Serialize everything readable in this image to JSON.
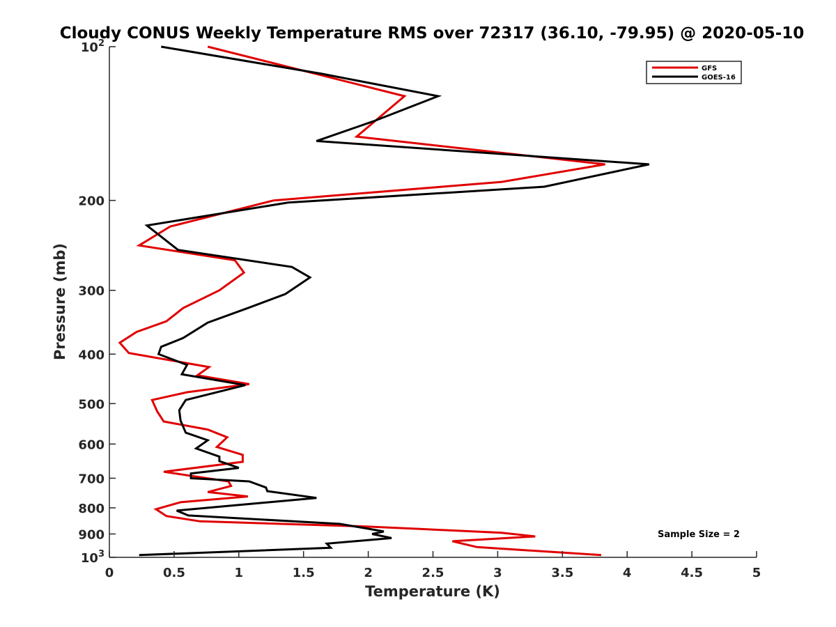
{
  "chart_data": {
    "type": "line",
    "title": "Cloudy CONUS Weekly Temperature RMS over 72317 (36.10, -79.95) @ 2020-05-10",
    "xlabel": "Temperature (K)",
    "ylabel": "Pressure (mb)",
    "xlim": [
      0,
      5
    ],
    "ylim": [
      100,
      1000
    ],
    "y_scale": "log",
    "y_reversed": true,
    "x_ticks": [
      0,
      0.5,
      1,
      1.5,
      2,
      2.5,
      3,
      3.5,
      4,
      4.5,
      5
    ],
    "x_tick_labels": [
      "0",
      "0.5",
      "1",
      "1.5",
      "2",
      "2.5",
      "3",
      "3.5",
      "4",
      "4.5",
      "5"
    ],
    "y_ticks": [
      {
        "value": 100,
        "base": "10",
        "exp": "2"
      },
      {
        "value": 200,
        "label": "200"
      },
      {
        "value": 300,
        "label": "300"
      },
      {
        "value": 400,
        "label": "400"
      },
      {
        "value": 500,
        "label": "500"
      },
      {
        "value": 600,
        "label": "600"
      },
      {
        "value": 700,
        "label": "700"
      },
      {
        "value": 800,
        "label": "800"
      },
      {
        "value": 900,
        "label": "900"
      },
      {
        "value": 1000,
        "base": "10",
        "exp": "3"
      }
    ],
    "legend_position": "top-right",
    "grid": false,
    "series": [
      {
        "name": "GFS",
        "color": "#e00000",
        "points": [
          [
            0.76,
            100
          ],
          [
            2.28,
            125
          ],
          [
            1.91,
            150
          ],
          [
            3.83,
            170
          ],
          [
            3.03,
            184
          ],
          [
            1.27,
            200
          ],
          [
            0.47,
            225
          ],
          [
            0.23,
            245
          ],
          [
            0.97,
            262
          ],
          [
            1.04,
            277
          ],
          [
            0.85,
            300
          ],
          [
            0.57,
            325
          ],
          [
            0.44,
            345
          ],
          [
            0.21,
            362
          ],
          [
            0.08,
            380
          ],
          [
            0.15,
            398
          ],
          [
            0.77,
            424
          ],
          [
            0.68,
            440
          ],
          [
            1.08,
            458
          ],
          [
            0.6,
            475
          ],
          [
            0.33,
            492
          ],
          [
            0.37,
            518
          ],
          [
            0.42,
            542
          ],
          [
            0.76,
            562
          ],
          [
            0.91,
            582
          ],
          [
            0.83,
            608
          ],
          [
            1.03,
            630
          ],
          [
            1.03,
            650
          ],
          [
            0.42,
            680
          ],
          [
            0.92,
            710
          ],
          [
            0.94,
            725
          ],
          [
            0.76,
            745
          ],
          [
            1.07,
            760
          ],
          [
            0.55,
            780
          ],
          [
            0.36,
            805
          ],
          [
            0.44,
            830
          ],
          [
            0.7,
            850
          ],
          [
            1.98,
            870
          ],
          [
            2.4,
            880
          ],
          [
            3.03,
            895
          ],
          [
            3.29,
            910
          ],
          [
            2.65,
            930
          ],
          [
            2.84,
            955
          ],
          [
            3.8,
            990
          ]
        ]
      },
      {
        "name": "GOES-16",
        "color": "#000000",
        "points": [
          [
            0.4,
            100
          ],
          [
            1.64,
            113
          ],
          [
            2.54,
            125
          ],
          [
            2.04,
            140
          ],
          [
            1.6,
            153
          ],
          [
            4.17,
            170
          ],
          [
            3.36,
            188
          ],
          [
            1.38,
            202
          ],
          [
            0.29,
            224
          ],
          [
            0.53,
            250
          ],
          [
            1.41,
            270
          ],
          [
            1.55,
            283
          ],
          [
            1.36,
            305
          ],
          [
            1.07,
            325
          ],
          [
            0.76,
            347
          ],
          [
            0.57,
            372
          ],
          [
            0.4,
            387
          ],
          [
            0.38,
            400
          ],
          [
            0.6,
            420
          ],
          [
            0.56,
            438
          ],
          [
            1.05,
            460
          ],
          [
            0.59,
            492
          ],
          [
            0.54,
            515
          ],
          [
            0.55,
            540
          ],
          [
            0.59,
            570
          ],
          [
            0.76,
            590
          ],
          [
            0.67,
            612
          ],
          [
            0.85,
            635
          ],
          [
            0.85,
            648
          ],
          [
            1.0,
            668
          ],
          [
            0.63,
            685
          ],
          [
            0.63,
            700
          ],
          [
            1.08,
            710
          ],
          [
            1.21,
            730
          ],
          [
            1.22,
            742
          ],
          [
            1.6,
            765
          ],
          [
            0.87,
            795
          ],
          [
            0.52,
            810
          ],
          [
            0.61,
            828
          ],
          [
            1.78,
            860
          ],
          [
            1.99,
            878
          ],
          [
            2.12,
            890
          ],
          [
            2.03,
            900
          ],
          [
            2.18,
            917
          ],
          [
            1.68,
            940
          ],
          [
            1.71,
            958
          ],
          [
            0.23,
            990
          ]
        ]
      }
    ],
    "annotation": "Sample Size = 2"
  }
}
